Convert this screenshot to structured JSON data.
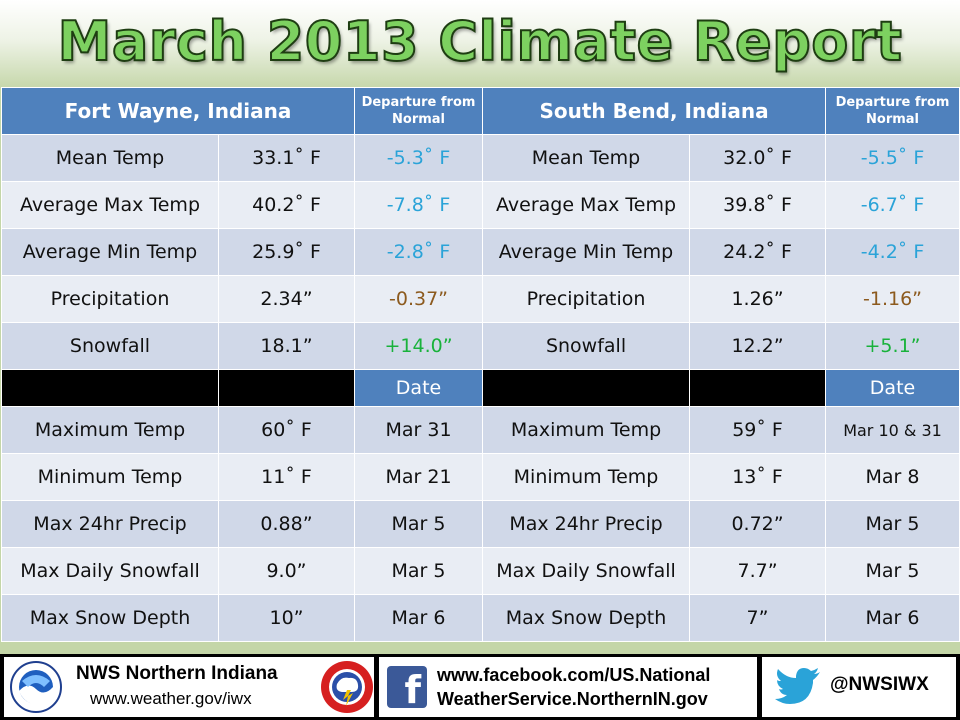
{
  "title": "March 2013 Climate Report",
  "header": {
    "left_city": "Fort Wayne, Indiana",
    "left_departure": "Departure from Normal",
    "right_city": "South Bend, Indiana",
    "right_departure": "Departure from Normal"
  },
  "stats": [
    {
      "label": "Mean Temp",
      "fw": "33.1˚ F",
      "fw_dep": "-5.3˚ F",
      "sb": "32.0˚ F",
      "sb_dep": "-5.5˚ F"
    },
    {
      "label": "Average Max Temp",
      "fw": "40.2˚ F",
      "fw_dep": "-7.8˚ F",
      "sb": "39.8˚ F",
      "sb_dep": "-6.7˚ F"
    },
    {
      "label": "Average Min Temp",
      "fw": "25.9˚ F",
      "fw_dep": "-2.8˚ F",
      "sb": "24.2˚ F",
      "sb_dep": "-4.2˚ F"
    },
    {
      "label": "Precipitation",
      "fw": "2.34”",
      "fw_dep": "-0.37”",
      "sb": "1.26”",
      "sb_dep": "-1.16”"
    },
    {
      "label": "Snowfall",
      "fw": "18.1”",
      "fw_dep": "+14.0”",
      "sb": "12.2”",
      "sb_dep": "+5.1”"
    }
  ],
  "date_header": {
    "left": "Date",
    "right": "Date"
  },
  "extremes": [
    {
      "label": "Maximum Temp",
      "fw": "60˚ F",
      "fw_date": "Mar 31",
      "sb": "59˚ F",
      "sb_date": "Mar 10 & 31"
    },
    {
      "label": "Minimum Temp",
      "fw": "11˚ F",
      "fw_date": "Mar 21",
      "sb": "13˚ F",
      "sb_date": "Mar 8"
    },
    {
      "label": "Max 24hr Precip",
      "fw": "0.88”",
      "fw_date": "Mar 5",
      "sb": "0.72”",
      "sb_date": "Mar 5"
    },
    {
      "label": "Max Daily Snowfall",
      "fw": "9.0”",
      "fw_date": "Mar 5",
      "sb": "7.7”",
      "sb_date": "Mar 5"
    },
    {
      "label": "Max Snow Depth",
      "fw": "10”",
      "fw_date": "Mar 6",
      "sb": "7”",
      "sb_date": "Mar 6"
    }
  ],
  "footer": {
    "office_name": "NWS Northern Indiana",
    "office_url": "www.weather.gov/iwx",
    "facebook_line1": "www.facebook.com/US.National",
    "facebook_line2": "WeatherService.NorthernIN.gov",
    "facebook_icon": "f",
    "twitter_handle": "@NWSIWX"
  },
  "colors": {
    "header_blue": "#4f81bd",
    "row_dark": "#d0d8e8",
    "row_light": "#e9edf4",
    "below_normal_temp": "#2aa3d8",
    "below_normal_precip": "#8c5a1e",
    "above_normal_snow": "#19b23b",
    "title_green": "#7dd160"
  }
}
